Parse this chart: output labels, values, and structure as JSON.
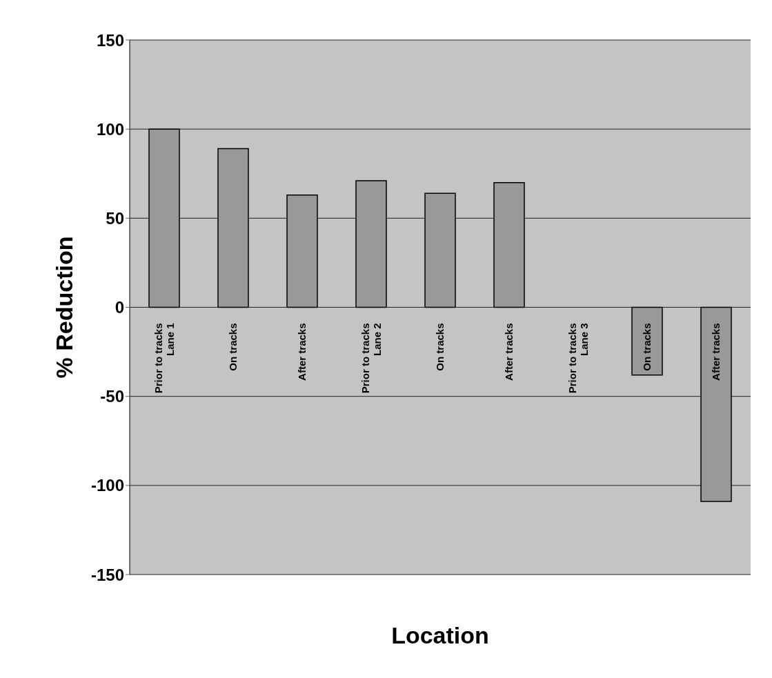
{
  "chart_data": {
    "type": "bar",
    "xlabel": "Location",
    "ylabel": "% Reduction",
    "categories": [
      "Prior to tracks\nLane 1",
      "On tracks",
      "After tracks",
      "Prior to tracks\nLane 2",
      "On tracks",
      "After tracks",
      "Prior to tracks\nLane 3",
      "On tracks",
      "After tracks"
    ],
    "values": [
      100,
      89,
      63,
      71,
      64,
      70,
      0,
      -38,
      -109
    ],
    "color": "#999999",
    "ylim": [
      -150,
      150
    ],
    "yticks": [
      -150,
      -100,
      -50,
      0,
      50,
      100,
      150
    ],
    "grid": "y"
  }
}
